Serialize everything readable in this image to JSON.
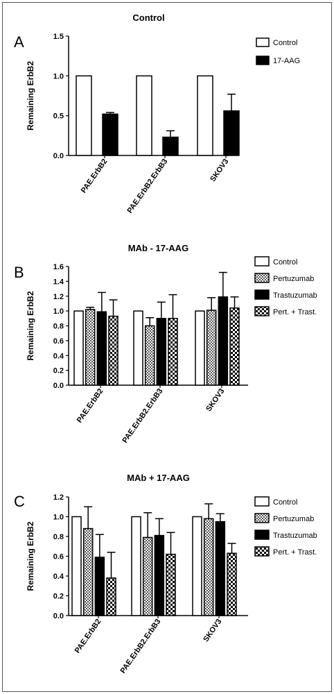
{
  "colors": {
    "control": "#ffffff",
    "pertuzumab": "checker-gray",
    "trastuzumab": "#000000",
    "pert_trast": "checker-black-white",
    "axis": "#000000",
    "border": "#555555"
  },
  "chart_data": [
    {
      "panel_letter": "A",
      "type": "bar",
      "title": "Control",
      "xlabel": "",
      "ylabel": "Remaining ErbB2",
      "ylim": [
        0,
        1.5
      ],
      "yticks": [
        "0.0",
        "0.5",
        "1.0",
        "1.5"
      ],
      "categories": [
        "PAE.ErbB2",
        "PAE.ErbB2.ErbB3",
        "SKOV3"
      ],
      "legend_position": "top-right",
      "grid": false,
      "series": [
        {
          "name": "Control",
          "style": "white",
          "values": [
            1.0,
            1.0,
            1.0
          ],
          "errors": [
            0,
            0,
            0
          ]
        },
        {
          "name": "17-AAG",
          "style": "black",
          "values": [
            0.52,
            0.23,
            0.56
          ],
          "errors": [
            0.02,
            0.08,
            0.21
          ]
        }
      ]
    },
    {
      "panel_letter": "B",
      "type": "bar",
      "title": "MAb - 17-AAG",
      "xlabel": "",
      "ylabel": "Remaining ErbB2",
      "ylim": [
        0,
        1.6
      ],
      "yticks": [
        "0.0",
        "0.2",
        "0.4",
        "0.6",
        "0.8",
        "1.0",
        "1.2",
        "1.4",
        "1.6"
      ],
      "categories": [
        "PAE.ErbB2",
        "PAE.ErbB2.ErbB3",
        "SKOV3"
      ],
      "legend_position": "top-right",
      "grid": false,
      "series": [
        {
          "name": "Control",
          "style": "white",
          "values": [
            1.0,
            1.0,
            1.0
          ],
          "errors": [
            0,
            0,
            0
          ]
        },
        {
          "name": "Pertuzumab",
          "style": "gray-check",
          "values": [
            1.02,
            0.8,
            1.01
          ],
          "errors": [
            0.03,
            0.11,
            0.17
          ]
        },
        {
          "name": "Trastuzumab",
          "style": "black",
          "values": [
            0.99,
            0.9,
            1.19
          ],
          "errors": [
            0.26,
            0.22,
            0.33
          ]
        },
        {
          "name": "Pert. + Trast.",
          "style": "bw-check",
          "values": [
            0.93,
            0.9,
            1.04
          ],
          "errors": [
            0.22,
            0.32,
            0.15
          ]
        }
      ]
    },
    {
      "panel_letter": "C",
      "type": "bar",
      "title": "MAb + 17-AAG",
      "xlabel": "",
      "ylabel": "Remaining ErbB2",
      "ylim": [
        0,
        1.2
      ],
      "yticks": [
        "0.0",
        "0.2",
        "0.4",
        "0.6",
        "0.8",
        "1.0",
        "1.2"
      ],
      "categories": [
        "PAE.ErbB2",
        "PAE.ErbB2.ErbB3",
        "SKOV3"
      ],
      "legend_position": "top-right",
      "grid": false,
      "series": [
        {
          "name": "Control",
          "style": "white",
          "values": [
            1.0,
            1.0,
            1.0
          ],
          "errors": [
            0,
            0,
            0
          ]
        },
        {
          "name": "Pertuzumab",
          "style": "gray-check",
          "values": [
            0.88,
            0.79,
            0.98
          ],
          "errors": [
            0.22,
            0.25,
            0.15
          ]
        },
        {
          "name": "Trastuzumab",
          "style": "black",
          "values": [
            0.59,
            0.81,
            0.95
          ],
          "errors": [
            0.23,
            0.17,
            0.08
          ]
        },
        {
          "name": "Pert. + Trast.",
          "style": "bw-check",
          "values": [
            0.38,
            0.62,
            0.63
          ],
          "errors": [
            0.26,
            0.22,
            0.1
          ]
        }
      ]
    }
  ]
}
